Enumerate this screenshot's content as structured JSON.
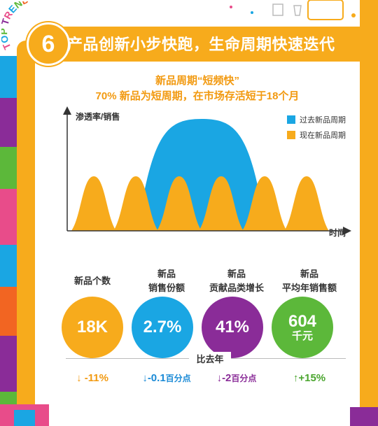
{
  "badge": {
    "text": "TOP TREND",
    "number": "6"
  },
  "header": {
    "title": "产品创新小步快跑，生命周期快速迭代"
  },
  "subtitle": {
    "line1": "新品周期“短频快”",
    "line2": "70% 新品为短周期，在市场存活短于18个月"
  },
  "chart_data": {
    "type": "area",
    "title": "",
    "ylabel": "渗透率/销售",
    "xlabel": "时间",
    "legend": [
      "过去新品周期",
      "现在新品周期"
    ],
    "colors": {
      "past": "#1aa6e3",
      "present": "#f7ab1c"
    },
    "series": [
      {
        "name": "过去新品周期",
        "shape": "one broad bell curve spanning most of the timeline"
      },
      {
        "name": "现在新品周期",
        "shape": "six short bell curves repeating along the timeline"
      }
    ]
  },
  "stats": [
    {
      "label": "新品个数",
      "label2": "",
      "value": "18K",
      "value2": "",
      "color": "#f7ab1c",
      "change": "↓ -11%",
      "change_unit": "",
      "change_color": "#f29a11"
    },
    {
      "label": "新品",
      "label2": "销售份额",
      "value": "2.7%",
      "value2": "",
      "color": "#1aa6e3",
      "change": "↓-0.1",
      "change_unit": "百分点",
      "change_color": "#1a8ad6"
    },
    {
      "label": "新品",
      "label2": "贡献品类增长",
      "value": "41%",
      "value2": "",
      "color": "#8a2c98",
      "change": "↓-2",
      "change_unit": "百分点",
      "change_color": "#8a2c98"
    },
    {
      "label": "新品",
      "label2": "平均年销售额",
      "value": "604",
      "value2": "千元",
      "color": "#5cb83a",
      "change": "↑+15%",
      "change_unit": "",
      "change_color": "#4aa52e"
    }
  ],
  "compare_label": "比去年"
}
